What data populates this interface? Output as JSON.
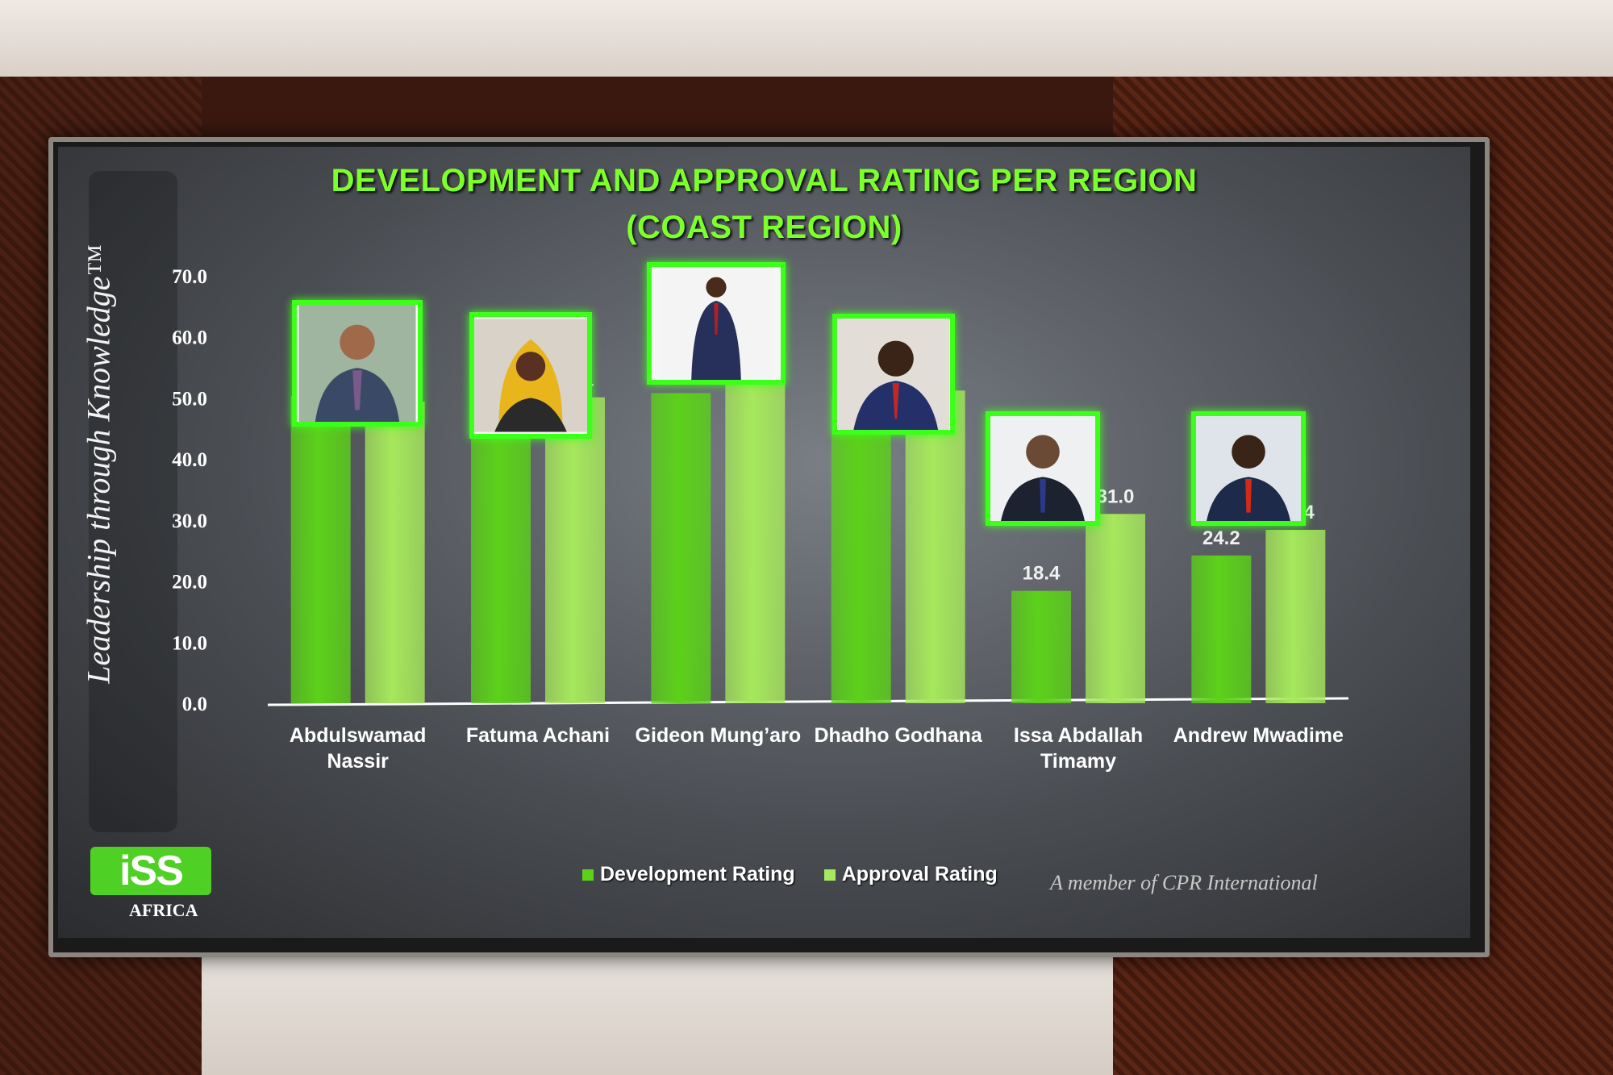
{
  "slide": {
    "title_line1": "DEVELOPMENT AND APPROVAL RATING PER REGION",
    "title_line2": "(COAST REGION)",
    "tagline": "Leadership through Knowledge™",
    "logo_text": "iSS",
    "logo_sub": "AFRICA",
    "member_text": "A member of CPR International"
  },
  "colors": {
    "development": "#5cd11a",
    "approval": "#a6e85c",
    "title": "#7dff2a"
  },
  "chart_data": {
    "type": "bar",
    "title": "DEVELOPMENT AND APPROVAL RATING PER REGION (COAST REGION)",
    "ylim": [
      0,
      70
    ],
    "yticks": [
      "0.0",
      "10.0",
      "20.0",
      "30.0",
      "40.0",
      "50.0",
      "60.0",
      "70.0"
    ],
    "categories": [
      "Abdulswamad Nassir",
      "Fatuma Achani",
      "Gideon Mung’aro",
      "Dhadho Godhana",
      "Issa Abdallah Timamy",
      "Andrew Mwadime"
    ],
    "category_lines": [
      [
        "Abdulswamad",
        "Nassir"
      ],
      [
        "Fatuma Achani"
      ],
      [
        "Gideon Mung’aro"
      ],
      [
        "Dhadho Godhana"
      ],
      [
        "Issa Abdallah",
        "Timamy"
      ],
      [
        "Andrew Mwadime"
      ]
    ],
    "series": [
      {
        "name": "Development Rating",
        "values": [
          50.3,
          44.0,
          50.8,
          50.0,
          18.4,
          24.2
        ],
        "labels": [
          "50.3",
          "44.0",
          "50.8",
          "50.0",
          "18.4",
          "24.2"
        ]
      },
      {
        "name": "Approval Rating",
        "values": [
          49.4,
          50.1,
          58.4,
          51.2,
          31.0,
          28.4
        ],
        "labels": [
          "49.4",
          "50.1",
          "58.4",
          "51.2",
          "31.0",
          "28.4"
        ]
      }
    ],
    "grid": false,
    "legend": "bottom-center"
  }
}
